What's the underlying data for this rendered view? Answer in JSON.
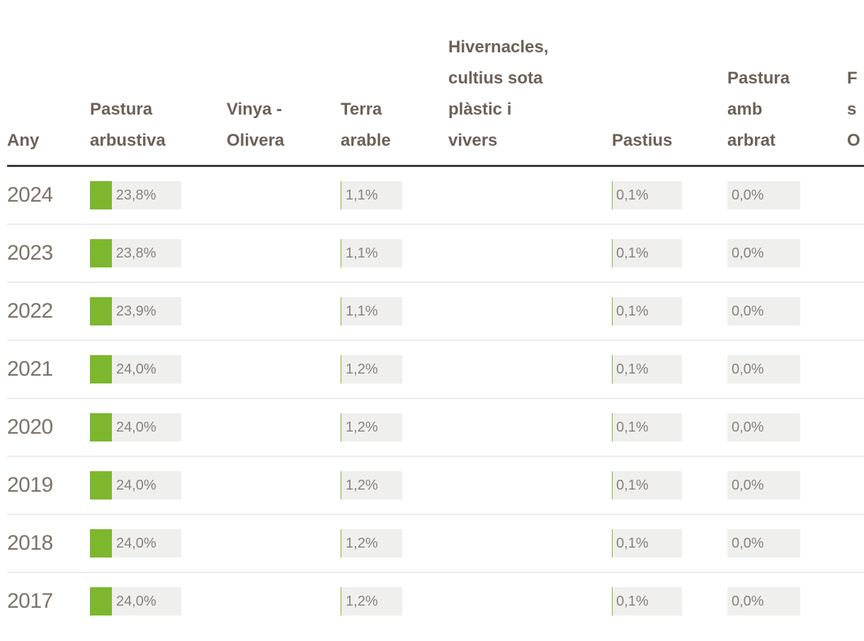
{
  "colors": {
    "bar_fill": "#7cb72e",
    "bar_track": "#efefee",
    "header_text": "#6d6156",
    "year_text": "#7e7268",
    "value_text": "#8a8178",
    "header_rule": "#3b3b3b",
    "row_separator": "#ececec"
  },
  "chart_data": {
    "type": "table",
    "title": "",
    "unit": "%",
    "bar_scale": [
      0,
      100
    ],
    "legend_position": "none",
    "columns": [
      {
        "id": "any",
        "label_lines": [
          "Any"
        ]
      },
      {
        "id": "pastura_arbustiva",
        "label_lines": [
          "Pastura",
          "arbustiva"
        ]
      },
      {
        "id": "vinya_olivera",
        "label_lines": [
          "Vinya -",
          "Olivera"
        ]
      },
      {
        "id": "terra_arable",
        "label_lines": [
          "Terra",
          "arable"
        ]
      },
      {
        "id": "hivernacles",
        "label_lines": [
          "Hivernacles,",
          "cultius sota",
          "plàstic i",
          "vivers"
        ]
      },
      {
        "id": "pastius",
        "label_lines": [
          "Pastius"
        ]
      },
      {
        "id": "pastura_amb_arbrat",
        "label_lines": [
          "Pastura",
          "amb",
          "arbrat"
        ]
      },
      {
        "id": "truncated_column",
        "label_lines": [
          "F",
          "s",
          "O"
        ]
      }
    ],
    "rows": [
      {
        "year": "2024",
        "cells": {
          "pastura_arbustiva": {
            "label": "23,8%",
            "value": 23.8
          },
          "terra_arable": {
            "label": "1,1%",
            "value": 1.1
          },
          "pastius": {
            "label": "0,1%",
            "value": 0.1
          },
          "pastura_amb_arbrat": {
            "label": "0,0%",
            "value": 0.0
          }
        }
      },
      {
        "year": "2023",
        "cells": {
          "pastura_arbustiva": {
            "label": "23,8%",
            "value": 23.8
          },
          "terra_arable": {
            "label": "1,1%",
            "value": 1.1
          },
          "pastius": {
            "label": "0,1%",
            "value": 0.1
          },
          "pastura_amb_arbrat": {
            "label": "0,0%",
            "value": 0.0
          }
        }
      },
      {
        "year": "2022",
        "cells": {
          "pastura_arbustiva": {
            "label": "23,9%",
            "value": 23.9
          },
          "terra_arable": {
            "label": "1,1%",
            "value": 1.1
          },
          "pastius": {
            "label": "0,1%",
            "value": 0.1
          },
          "pastura_amb_arbrat": {
            "label": "0,0%",
            "value": 0.0
          }
        }
      },
      {
        "year": "2021",
        "cells": {
          "pastura_arbustiva": {
            "label": "24,0%",
            "value": 24.0
          },
          "terra_arable": {
            "label": "1,2%",
            "value": 1.2
          },
          "pastius": {
            "label": "0,1%",
            "value": 0.1
          },
          "pastura_amb_arbrat": {
            "label": "0,0%",
            "value": 0.0
          }
        }
      },
      {
        "year": "2020",
        "cells": {
          "pastura_arbustiva": {
            "label": "24,0%",
            "value": 24.0
          },
          "terra_arable": {
            "label": "1,2%",
            "value": 1.2
          },
          "pastius": {
            "label": "0,1%",
            "value": 0.1
          },
          "pastura_amb_arbrat": {
            "label": "0,0%",
            "value": 0.0
          }
        }
      },
      {
        "year": "2019",
        "cells": {
          "pastura_arbustiva": {
            "label": "24,0%",
            "value": 24.0
          },
          "terra_arable": {
            "label": "1,2%",
            "value": 1.2
          },
          "pastius": {
            "label": "0,1%",
            "value": 0.1
          },
          "pastura_amb_arbrat": {
            "label": "0,0%",
            "value": 0.0
          }
        }
      },
      {
        "year": "2018",
        "cells": {
          "pastura_arbustiva": {
            "label": "24,0%",
            "value": 24.0
          },
          "terra_arable": {
            "label": "1,2%",
            "value": 1.2
          },
          "pastius": {
            "label": "0,1%",
            "value": 0.1
          },
          "pastura_amb_arbrat": {
            "label": "0,0%",
            "value": 0.0
          }
        }
      },
      {
        "year": "2017",
        "cells": {
          "pastura_arbustiva": {
            "label": "24,0%",
            "value": 24.0
          },
          "terra_arable": {
            "label": "1,2%",
            "value": 1.2
          },
          "pastius": {
            "label": "0,1%",
            "value": 0.1
          },
          "pastura_amb_arbrat": {
            "label": "0,0%",
            "value": 0.0
          }
        }
      }
    ]
  }
}
